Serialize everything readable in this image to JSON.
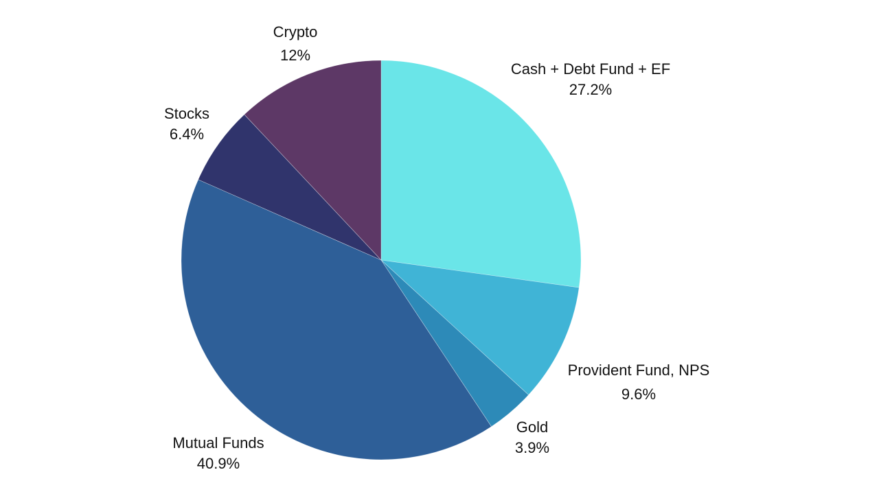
{
  "chart_data": {
    "type": "pie",
    "title": "",
    "start": "top",
    "direction": "clockwise",
    "slices": [
      {
        "label": "Cash + Debt Fund + EF",
        "value": 27.2,
        "value_label": "27.2%",
        "color": "#6ae5e8"
      },
      {
        "label": "Provident Fund, NPS",
        "value": 9.6,
        "value_label": "9.6%",
        "color": "#40b4d6"
      },
      {
        "label": "Gold",
        "value": 3.9,
        "value_label": "3.9%",
        "color": "#2d8ab8"
      },
      {
        "label": "Mutual Funds",
        "value": 40.9,
        "value_label": "40.9%",
        "color": "#2e5f98"
      },
      {
        "label": "Stocks",
        "value": 6.4,
        "value_label": "6.4%",
        "color": "#30346c"
      },
      {
        "label": "Crypto",
        "value": 12,
        "value_label": "12%",
        "color": "#5d3866"
      }
    ]
  }
}
